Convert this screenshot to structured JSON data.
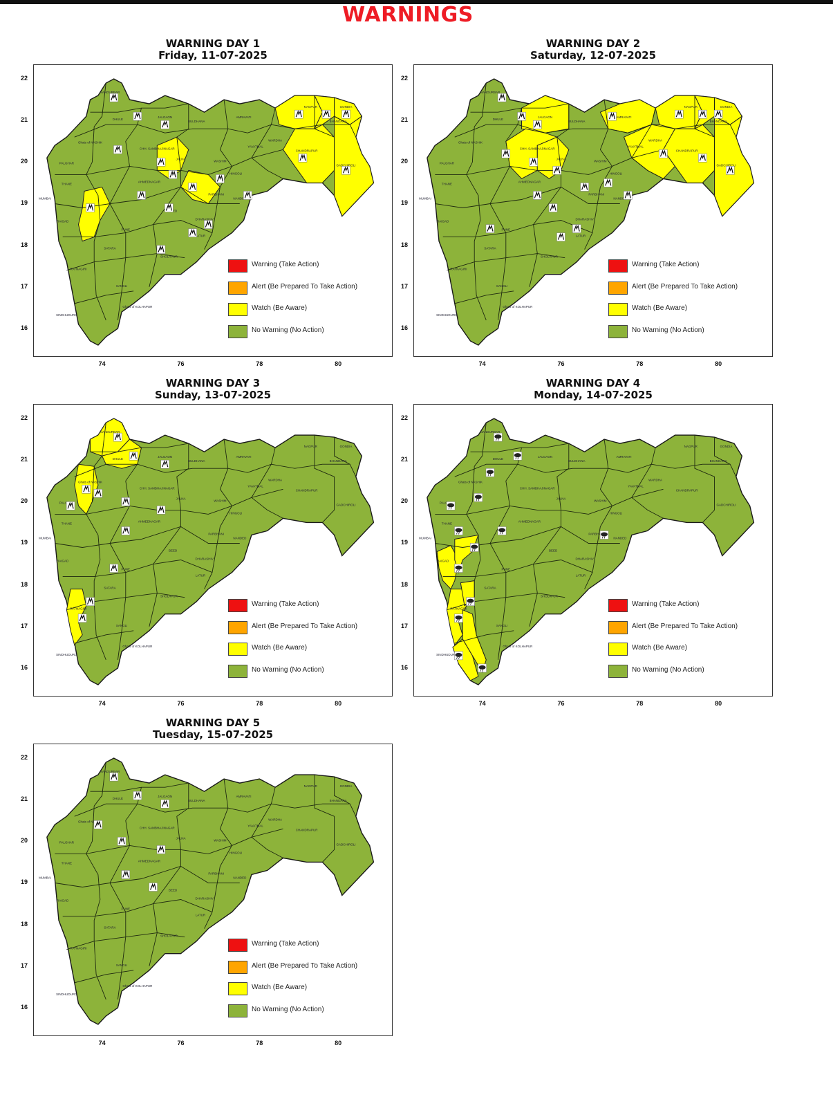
{
  "header": {
    "title": "WARNINGS",
    "title_color": "#ee1c25"
  },
  "legend": [
    {
      "label": "Warning (Take Action)",
      "color": "#ee1111"
    },
    {
      "label": "Alert (Be Prepared To Take Action)",
      "color": "#ffa500"
    },
    {
      "label": "Watch (Be Aware)",
      "color": "#ffff00"
    },
    {
      "label": "No Warning (No Action)",
      "color": "#8db33a"
    }
  ],
  "axes": {
    "x_ticks": [
      "74",
      "76",
      "78",
      "80"
    ],
    "y_ticks": [
      "22",
      "21",
      "20",
      "19",
      "18",
      "17",
      "16"
    ]
  },
  "panels": [
    {
      "title": "WARNING DAY 1",
      "date": "Friday, 11-07-2025",
      "watch_regions": [
        "NAGPUR",
        "BHANDARA",
        "GONDIA",
        "CHANDRAPUR",
        "GADCHIROLI",
        "JALNA",
        "PARBHANI",
        "PUNE"
      ],
      "icon": "thunderstorm-icon"
    },
    {
      "title": "WARNING DAY 2",
      "date": "Saturday, 12-07-2025",
      "watch_regions": [
        "JALGAON",
        "CHH. SAMBHAJINAGAR",
        "JALNA",
        "AMRAVATI",
        "YAVATMAL",
        "NAGPUR",
        "BHANDARA",
        "GONDIA",
        "CHANDRAPUR",
        "GADCHIROLI"
      ],
      "icon": "thunderstorm-icon"
    },
    {
      "title": "WARNING DAY 3",
      "date": "Sunday, 13-07-2025",
      "watch_regions": [
        "NANDURBAR",
        "DHULE",
        "Ghat areas of NASHIK",
        "RATNAGIRI"
      ],
      "icon": "thunderstorm-icon"
    },
    {
      "title": "WARNING DAY 4",
      "date": "Monday, 14-07-2025",
      "watch_regions": [
        "RAIGAD",
        "Ghat areas of PUNE",
        "RATNAGIRI",
        "SATARA",
        "SINDHUDURG",
        "Ghat areas of KOLHAPUR"
      ],
      "icon": "heavy-rain-icon"
    },
    {
      "title": "WARNING DAY 5",
      "date": "Tuesday, 15-07-2025",
      "watch_regions": [],
      "icon": "thunderstorm-icon"
    }
  ]
}
